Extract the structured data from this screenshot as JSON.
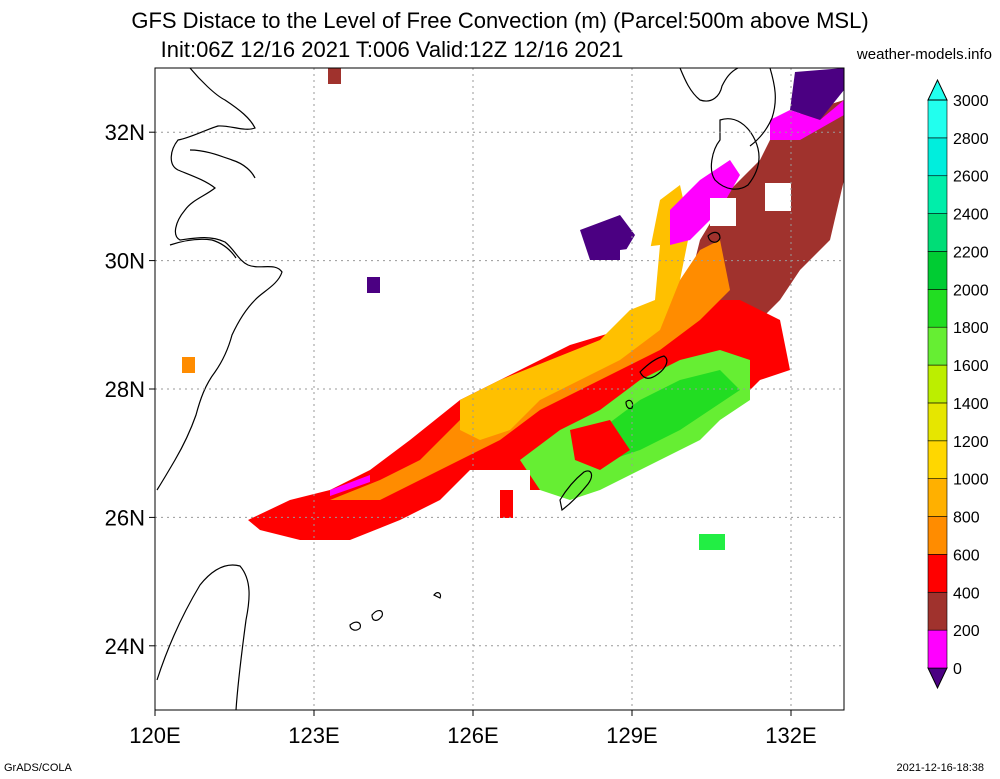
{
  "header": {
    "title_line1": "GFS Distace to the Level of Free Convection (m) (Parcel:500m above MSL)",
    "title_line2": "Init:06Z 12/16 2021 T:006 Valid:12Z 12/16 2021",
    "website": "weather-models.info"
  },
  "map": {
    "lon_labels": [
      "120E",
      "123E",
      "126E",
      "129E",
      "132E"
    ],
    "lat_labels": [
      "32N",
      "30N",
      "28N",
      "26N",
      "24N"
    ],
    "lon_values": [
      120,
      123,
      126,
      129,
      132
    ],
    "lat_values": [
      32,
      30,
      28,
      26,
      24
    ],
    "extent": {
      "lon_min": 120,
      "lon_max": 133,
      "lat_min": 23,
      "lat_max": 33
    }
  },
  "colorbar": {
    "labels": [
      "0",
      "200",
      "400",
      "600",
      "800",
      "1000",
      "1200",
      "1400",
      "1600",
      "1800",
      "2000",
      "2200",
      "2400",
      "2600",
      "2800",
      "3000"
    ],
    "colors": [
      "#4b0082",
      "#ff00ff",
      "#a0322d",
      "#ff0000",
      "#ff8c00",
      "#ffb000",
      "#ffd700",
      "#e6e600",
      "#bcee00",
      "#66ee33",
      "#22dd22",
      "#00cc33",
      "#00dd77",
      "#00eeaa",
      "#00eedd",
      "#22ffee"
    ]
  },
  "footer": {
    "left": "GrADS/COLA",
    "right": "2021-12-16-18:38"
  }
}
